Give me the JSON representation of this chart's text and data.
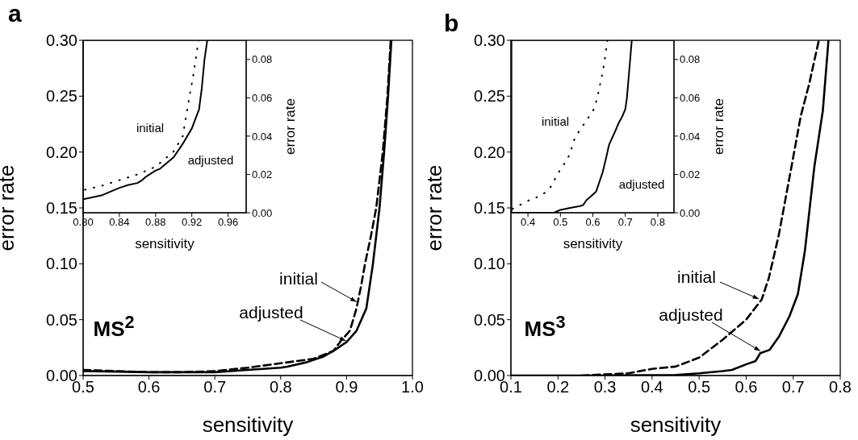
{
  "chart_data": [
    {
      "type": "line",
      "title": "a",
      "xlabel": "sensitivity",
      "ylabel": "error rate",
      "xlim": [
        0.5,
        1.0
      ],
      "ylim": [
        0,
        0.3
      ],
      "xticks": [
        0.5,
        0.6,
        0.7,
        0.8,
        0.9,
        {
          "value": 1.0,
          "label": "1.0"
        }
      ],
      "yticks": [
        {
          "value": 0,
          "label": "0.00"
        },
        {
          "value": 0.05,
          "label": "0.05"
        },
        {
          "value": 0.1,
          "label": "0.10"
        },
        {
          "value": 0.15,
          "label": "0.15"
        },
        {
          "value": 0.2,
          "label": "0.20"
        },
        {
          "value": 0.25,
          "label": "0.25"
        },
        {
          "value": 0.3,
          "label": "0.30"
        }
      ],
      "series": [
        {
          "color": "#000000",
          "line_style": "dashed",
          "x": [
            0.5,
            0.55,
            0.6,
            0.65,
            0.7,
            0.75,
            0.8,
            0.85,
            0.88,
            0.89,
            0.905,
            0.915,
            0.922,
            0.928,
            0.937,
            0.945,
            0.955,
            0.962,
            0.967
          ],
          "values": [
            0.005,
            0.004,
            0.003,
            0.003,
            0.004,
            0.007,
            0.011,
            0.015,
            0.022,
            0.03,
            0.04,
            0.06,
            0.08,
            0.1,
            0.125,
            0.15,
            0.2,
            0.25,
            0.3
          ]
        },
        {
          "color": "#000000",
          "line_style": "solid",
          "x": [
            0.5,
            0.55,
            0.6,
            0.65,
            0.7,
            0.75,
            0.8,
            0.81,
            0.84,
            0.86,
            0.865,
            0.88,
            0.9,
            0.915,
            0.93,
            0.94,
            0.95,
            0.957,
            0.963,
            0.968
          ],
          "values": [
            0.004,
            0.0035,
            0.003,
            0.003,
            0.003,
            0.005,
            0.007,
            0.008,
            0.012,
            0.016,
            0.017,
            0.022,
            0.03,
            0.04,
            0.06,
            0.1,
            0.15,
            0.2,
            0.25,
            0.3
          ]
        }
      ],
      "annotations": [
        {
          "text": "initial",
          "x": 0.915,
          "y": 0.066
        },
        {
          "text": "adjusted",
          "x": 0.899,
          "y": 0.031
        },
        "MS$^{2}$"
      ]
    },
    {
      "type": "line",
      "xlabel": "sensitivity",
      "ylabel": "error rate",
      "xlim": [
        0.8,
        0.98
      ],
      "ylim": [
        0,
        0.09
      ],
      "xticks": [
        {
          "value": 0.8,
          "label": "0.80"
        },
        0.84,
        0.88,
        0.92,
        0.96
      ],
      "yticks": [
        {
          "value": 0,
          "label": "0.00"
        },
        {
          "value": 0.02,
          "label": "0.02"
        },
        {
          "value": 0.04,
          "label": "0.04"
        },
        {
          "value": 0.06,
          "label": "0.06"
        },
        {
          "value": 0.08,
          "label": "0.08"
        }
      ],
      "series": [
        {
          "color": "#000000",
          "line_style": "dotted",
          "x": [
            0.802,
            0.82,
            0.84,
            0.86,
            0.88,
            0.89,
            0.9,
            0.91,
            0.9175,
            0.921,
            0.926,
            0.928
          ],
          "values": [
            0.012,
            0.014,
            0.017,
            0.02,
            0.024,
            0.028,
            0.032,
            0.04,
            0.061,
            0.07,
            0.0856,
            0.09
          ]
        },
        {
          "color": "#000000",
          "line_style": "solid",
          "x": [
            0.8,
            0.82,
            0.83,
            0.84,
            0.85,
            0.86,
            0.865,
            0.87,
            0.88,
            0.885,
            0.89,
            0.9,
            0.91,
            0.92,
            0.928,
            0.931,
            0.934,
            0.937
          ],
          "values": [
            0.007,
            0.009,
            0.011,
            0.013,
            0.0145,
            0.0155,
            0.017,
            0.019,
            0.022,
            0.023,
            0.025,
            0.029,
            0.036,
            0.044,
            0.054,
            0.065,
            0.08,
            0.09
          ]
        }
      ],
      "annotations": [
        "initial",
        "adjusted"
      ]
    },
    {
      "type": "line",
      "title": "b",
      "xlabel": "sensitivity",
      "ylabel": "error rate",
      "xlim": [
        0.1,
        0.8
      ],
      "ylim": [
        0,
        0.3
      ],
      "xticks": [
        0.1,
        0.2,
        0.3,
        0.4,
        0.5,
        0.6,
        0.7,
        0.8
      ],
      "yticks": [
        {
          "value": 0,
          "label": "0.00"
        },
        {
          "value": 0.05,
          "label": "0.05"
        },
        {
          "value": 0.1,
          "label": "0.10"
        },
        {
          "value": 0.15,
          "label": "0.15"
        },
        {
          "value": 0.2,
          "label": "0.20"
        },
        {
          "value": 0.25,
          "label": "0.25"
        },
        {
          "value": 0.3,
          "label": "0.30"
        }
      ],
      "series": [
        {
          "color": "#000000",
          "line_style": "dashed",
          "x": [
            0.25,
            0.3,
            0.35,
            0.4,
            0.45,
            0.5,
            0.55,
            0.6,
            0.633,
            0.648,
            0.669,
            0.692,
            0.716,
            0.734,
            0.754
          ],
          "values": [
            0,
            0.001,
            0.002,
            0.006,
            0.008,
            0.016,
            0.032,
            0.05,
            0.068,
            0.087,
            0.125,
            0.177,
            0.232,
            0.261,
            0.299
          ]
        },
        {
          "color": "#000000",
          "line_style": "solid",
          "x": [
            0.1,
            0.3,
            0.45,
            0.5,
            0.55,
            0.57,
            0.6,
            0.62,
            0.63,
            0.65,
            0.67,
            0.692,
            0.71,
            0.725,
            0.745,
            0.763,
            0.775
          ],
          "values": [
            0,
            0,
            0.0005,
            0.002,
            0.004,
            0.005,
            0.01,
            0.013,
            0.02,
            0.023,
            0.035,
            0.053,
            0.073,
            0.112,
            0.187,
            0.237,
            0.3
          ]
        }
      ],
      "annotations": [
        {
          "text": "initial",
          "x": 0.627,
          "y": 0.0685
        },
        {
          "text": "adjusted",
          "x": 0.63,
          "y": 0.022
        },
        "MS$^{3}$"
      ]
    },
    {
      "type": "line",
      "xlabel": "sensitivity",
      "ylabel": "error rate",
      "xlim": [
        0.35,
        0.85
      ],
      "ylim": [
        0,
        0.09
      ],
      "xticks": [
        0.4,
        0.5,
        0.6,
        0.7,
        0.8
      ],
      "yticks": [
        {
          "value": 0,
          "label": "0.00"
        },
        {
          "value": 0.02,
          "label": "0.02"
        },
        {
          "value": 0.04,
          "label": "0.04"
        },
        {
          "value": 0.06,
          "label": "0.06"
        },
        {
          "value": 0.08,
          "label": "0.08"
        }
      ],
      "series": [
        {
          "color": "#000000",
          "line_style": "dotted",
          "x": [
            0.352,
            0.375,
            0.409,
            0.443,
            0.473,
            0.489,
            0.51,
            0.531,
            0.539,
            0.559,
            0.58,
            0.603,
            0.614,
            0.621,
            0.628,
            0.636,
            0.642,
            0.645
          ],
          "values": [
            0.002,
            0.004,
            0.007,
            0.009,
            0.014,
            0.0197,
            0.025,
            0.031,
            0.037,
            0.043,
            0.048,
            0.054,
            0.06,
            0.066,
            0.0715,
            0.079,
            0.087,
            0.09
          ]
        },
        {
          "color": "#000000",
          "line_style": "solid",
          "x": [
            0.35,
            0.48,
            0.5,
            0.53,
            0.56,
            0.57,
            0.58,
            0.6,
            0.61,
            0.62,
            0.63,
            0.64,
            0.65,
            0.67,
            0.68,
            0.69,
            0.7,
            0.705,
            0.71,
            0.715,
            0.72
          ],
          "values": [
            0,
            0,
            0.0015,
            0.0025,
            0.0035,
            0.004,
            0.0065,
            0.0095,
            0.011,
            0.016,
            0.021,
            0.028,
            0.0355,
            0.043,
            0.047,
            0.05,
            0.054,
            0.06,
            0.07,
            0.08,
            0.09
          ]
        }
      ],
      "annotations": [
        "initial",
        "adjusted"
      ]
    }
  ]
}
